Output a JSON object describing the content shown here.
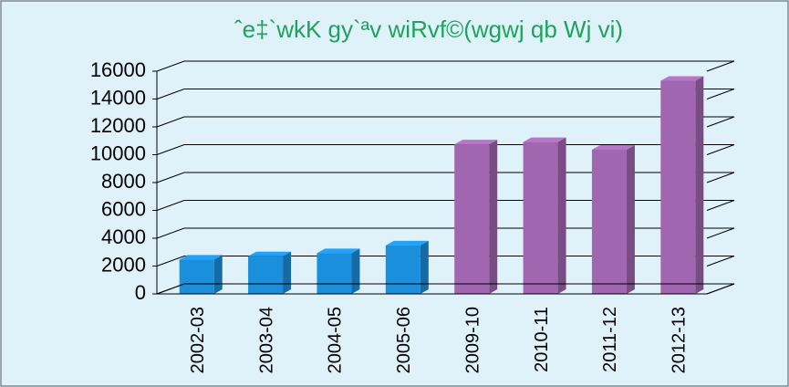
{
  "chart_data": {
    "type": "bar3d",
    "title": "ˆe‡`wkK gy`ªv wiRvf©(wgwj qb Wj vi)",
    "categories": [
      "2002-03",
      "2003-04",
      "2004-05",
      "2005-06",
      "2009-10",
      "2010-11",
      "2011-12",
      "2012-13"
    ],
    "values": [
      2470,
      2705,
      2930,
      3484,
      10750,
      10912,
      10364,
      15315
    ],
    "colors": [
      "#1a8fdc",
      "#1a8fdc",
      "#1a8fdc",
      "#1a8fdc",
      "#a066b0",
      "#a066b0",
      "#a066b0",
      "#a066b0"
    ],
    "ylim": [
      0,
      16000
    ],
    "yticks": [
      0,
      2000,
      4000,
      6000,
      8000,
      10000,
      12000,
      14000,
      16000
    ],
    "grid": true
  }
}
